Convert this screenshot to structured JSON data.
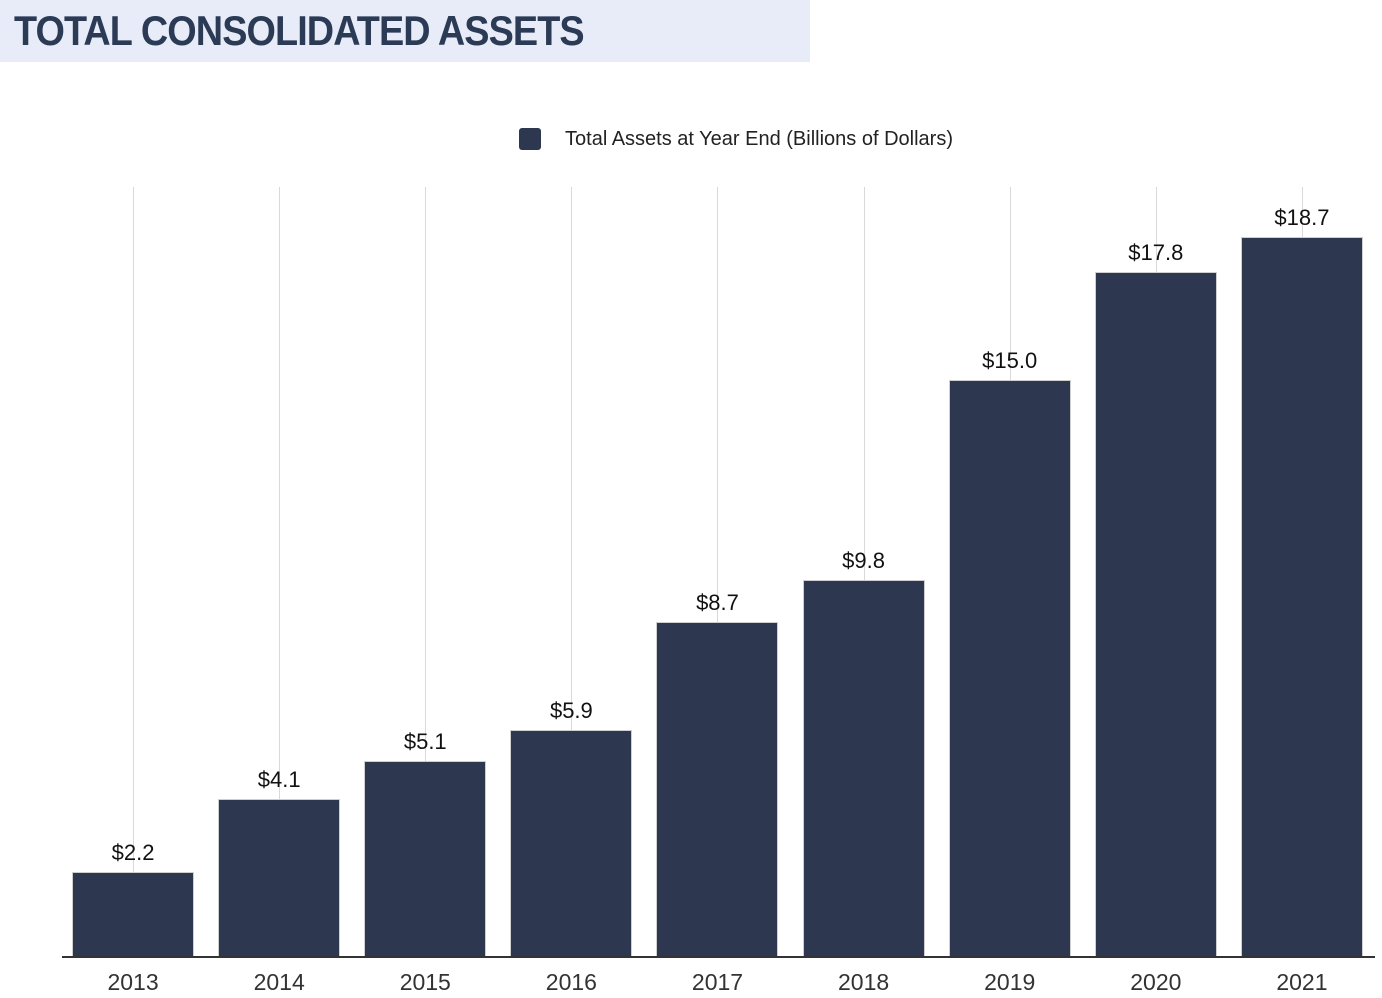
{
  "header": {
    "title": "TOTAL CONSOLIDATED ASSETS"
  },
  "legend": {
    "label": "Total Assets at Year End (Billions of Dollars)"
  },
  "colors": {
    "bar": "#2d374f",
    "bar_border": "#cfcfcf",
    "header_bg": "#e7ecf8",
    "title_text": "#2b3a55",
    "gridline": "#d9d9d9",
    "axis_line": "#333333",
    "value_label": "#111111",
    "axis_label": "#333333"
  },
  "chart_data": {
    "type": "bar",
    "title": "TOTAL CONSOLIDATED ASSETS",
    "categories": [
      "2013",
      "2014",
      "2015",
      "2016",
      "2017",
      "2018",
      "2019",
      "2020",
      "2021"
    ],
    "values": [
      2.2,
      4.1,
      5.1,
      5.9,
      8.7,
      9.8,
      15.0,
      17.8,
      18.7
    ],
    "value_labels": [
      "$2.2",
      "$4.1",
      "$5.1",
      "$5.9",
      "$8.7",
      "$9.8",
      "$15.0",
      "$17.8",
      "$18.7"
    ],
    "series_name": "Total Assets at Year End (Billions of Dollars)",
    "xlabel": "",
    "ylabel": "",
    "ylim": [
      0,
      20
    ],
    "grid": "vertical-only",
    "y_axis_visible": false,
    "legend_position": "top-center"
  }
}
